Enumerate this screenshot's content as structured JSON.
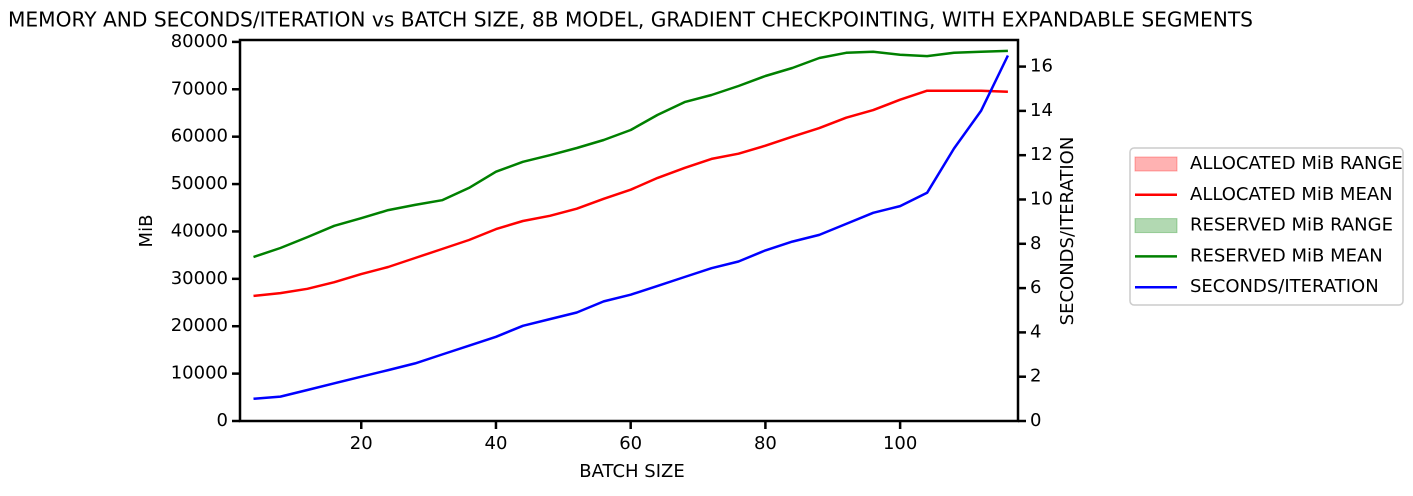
{
  "chart_data": {
    "type": "line",
    "title": "MEMORY AND SECONDS/ITERATION vs BATCH SIZE, 8B MODEL, GRADIENT CHECKPOINTING, WITH EXPANDABLE SEGMENTS",
    "xlabel": "BATCH SIZE",
    "ylabel": "MiB",
    "y2label": "SECONDS/ITERATION",
    "x": [
      4,
      8,
      12,
      16,
      20,
      24,
      28,
      32,
      36,
      40,
      44,
      48,
      52,
      56,
      60,
      64,
      68,
      72,
      76,
      80,
      84,
      88,
      92,
      96,
      100,
      104,
      108,
      112,
      116
    ],
    "xlim": [
      2,
      117.5
    ],
    "xticks": [
      20,
      40,
      60,
      80,
      100
    ],
    "ylim": [
      0,
      80400
    ],
    "yticks": [
      0,
      10000,
      20000,
      30000,
      40000,
      50000,
      60000,
      70000,
      80000
    ],
    "y2lim": [
      0,
      17.2
    ],
    "y2ticks": [
      0,
      2,
      4,
      6,
      8,
      10,
      12,
      14,
      16
    ],
    "legend": "right",
    "series": [
      {
        "name": "ALLOCATED MiB RANGE",
        "color": "#ff0000"
      },
      {
        "name": "ALLOCATED MiB MEAN",
        "color": "#ff0000",
        "values": [
          26400,
          27000,
          27900,
          29300,
          31000,
          32500,
          34400,
          36300,
          38200,
          40500,
          42200,
          43300,
          44800,
          46900,
          48800,
          51300,
          53400,
          55300,
          56400,
          58100,
          60000,
          61800,
          64000,
          65600,
          67800,
          69700,
          69700,
          69700,
          69500
        ]
      },
      {
        "name": "RESERVED MiB RANGE",
        "color": "#008000"
      },
      {
        "name": "RESERVED MiB MEAN",
        "color": "#008000",
        "values": [
          34600,
          36500,
          38800,
          41200,
          42800,
          44500,
          45600,
          46600,
          49200,
          52600,
          54700,
          56100,
          57600,
          59300,
          61400,
          64600,
          67300,
          68800,
          70700,
          72800,
          74500,
          76600,
          77700,
          77900,
          77300,
          77000,
          77700,
          77900,
          78100
        ]
      },
      {
        "name": "SECONDS/ITERATION",
        "color": "#0000ff",
        "axis": "y2",
        "values": [
          1.0,
          1.1,
          1.4,
          1.7,
          2.0,
          2.3,
          2.6,
          3.0,
          3.4,
          3.8,
          4.3,
          4.6,
          4.9,
          5.4,
          5.7,
          6.1,
          6.5,
          6.9,
          7.2,
          7.7,
          8.1,
          8.4,
          8.9,
          9.4,
          9.7,
          10.3,
          12.3,
          14.0,
          16.5
        ]
      }
    ]
  }
}
